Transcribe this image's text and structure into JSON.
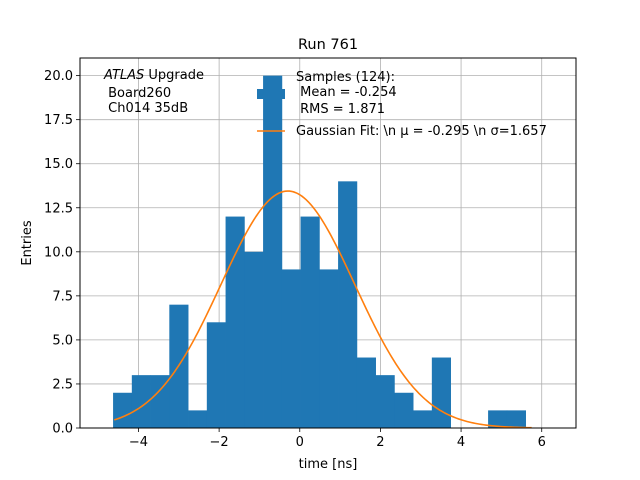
{
  "chart_data": {
    "type": "bar",
    "title": "Run 761",
    "xlabel": "time [ns]",
    "ylabel": "Entries",
    "xlim": [
      -5.45,
      6.85
    ],
    "ylim": [
      0,
      21
    ],
    "xticks": [
      -4,
      -2,
      0,
      2,
      4,
      6
    ],
    "xtick_labels": [
      "−4",
      "−2",
      "0",
      "2",
      "4",
      "6"
    ],
    "yticks": [
      0,
      2.5,
      5,
      7.5,
      10,
      12.5,
      15,
      17.5,
      20
    ],
    "ytick_labels": [
      "0.0",
      "2.5",
      "5.0",
      "7.5",
      "10.0",
      "12.5",
      "15.0",
      "17.5",
      "20.0"
    ],
    "grid": true,
    "bins": {
      "edges": [
        -4.63,
        -4.165,
        -3.7,
        -3.235,
        -2.77,
        -2.305,
        -1.84,
        -1.375,
        -0.91,
        -0.445,
        0.02,
        0.485,
        0.95,
        1.415,
        1.88,
        2.345,
        2.81,
        3.275,
        3.74,
        4.205,
        4.67,
        5.135,
        5.6
      ],
      "counts": [
        2,
        3,
        3,
        7,
        1,
        6,
        12,
        10,
        20,
        9,
        12,
        9,
        14,
        4,
        3,
        2,
        1,
        4,
        0,
        0,
        1,
        1
      ]
    },
    "gaussian_fit": {
      "mu": -0.295,
      "sigma": 1.657,
      "amplitude": 13.45,
      "x_range": [
        -4.6,
        5.75
      ]
    },
    "bar_color": "#1f77b4",
    "fit_color": "#ff7f0e",
    "legend": {
      "placement": "top-right",
      "entries": [
        {
          "kind": "bar",
          "lines": [
            "Samples (124):",
            " Mean = -0.254",
            " RMS = 1.871"
          ]
        },
        {
          "kind": "line",
          "lines": [
            "Gaussian Fit: \\n μ = -0.295 \\n σ=1.657"
          ]
        }
      ]
    },
    "annotation": {
      "atlas": "ATLAS",
      "upgrade": " Upgrade",
      "lines": [
        " Board260",
        " Ch014 35dB"
      ]
    }
  }
}
